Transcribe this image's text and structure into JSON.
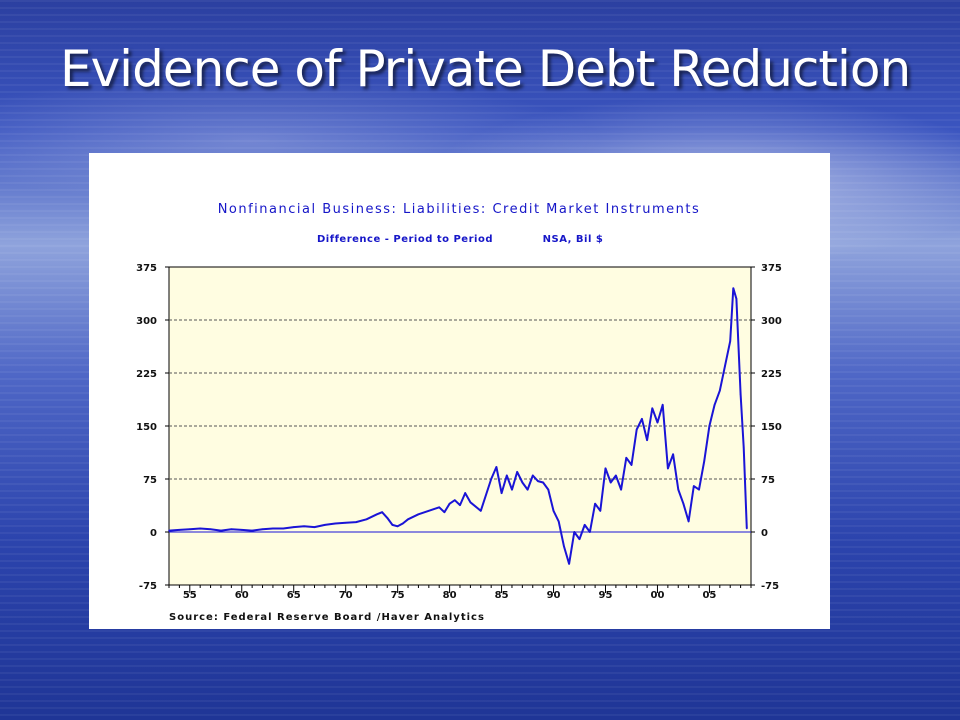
{
  "slide": {
    "title": "Evidence of Private Debt Reduction"
  },
  "chart_data": {
    "type": "line",
    "title": "Nonfinancial Business: Liabilities: Credit Market Instruments",
    "subtitle": "Difference - Period to Period",
    "units_note": "NSA, Bil $",
    "source": "Source:  Federal Reserve Board /Haver Analytics",
    "xlim": [
      1953,
      2009
    ],
    "ylim": [
      -75,
      375
    ],
    "x_ticks": [
      1955,
      1960,
      1965,
      1970,
      1975,
      1980,
      1985,
      1990,
      1995,
      2000,
      2005
    ],
    "x_tick_labels": [
      "55",
      "60",
      "65",
      "70",
      "75",
      "80",
      "85",
      "90",
      "95",
      "00",
      "05"
    ],
    "y_ticks": [
      -75,
      0,
      75,
      150,
      225,
      300,
      375
    ],
    "y_tick_labels": [
      "-75",
      "0",
      "75",
      "150",
      "225",
      "300",
      "375"
    ],
    "y_axis_both_sides": true,
    "grid": "horizontal dashed",
    "plot_background": "#fffde1",
    "line_color": "#1a14d6",
    "series": [
      {
        "x": [
          1953.0,
          1954.0,
          1955.0,
          1956.0,
          1957.0,
          1958.0,
          1959.0,
          1960.0,
          1961.0,
          1962.0,
          1963.0,
          1964.0,
          1965.0,
          1966.0,
          1967.0,
          1968.0,
          1969.0,
          1970.0,
          1971.0,
          1972.0,
          1973.0,
          1973.5,
          1974.0,
          1974.5,
          1975.0,
          1975.5,
          1976.0,
          1977.0,
          1978.0,
          1979.0,
          1979.5,
          1980.0,
          1980.5,
          1981.0,
          1981.5,
          1982.0,
          1983.0,
          1984.0,
          1984.5,
          1985.0,
          1985.5,
          1986.0,
          1986.5,
          1987.0,
          1987.5,
          1988.0,
          1988.5,
          1989.0,
          1989.5,
          1990.0,
          1990.5,
          1991.0,
          1991.5,
          1992.0,
          1992.5,
          1993.0,
          1993.5,
          1994.0,
          1994.5,
          1995.0,
          1995.5,
          1996.0,
          1996.5,
          1997.0,
          1997.5,
          1998.0,
          1998.5,
          1999.0,
          1999.5,
          2000.0,
          2000.5,
          2001.0,
          2001.5,
          2002.0,
          2002.5,
          2003.0,
          2003.5,
          2004.0,
          2004.5,
          2005.0,
          2005.5,
          2006.0,
          2006.5,
          2007.0,
          2007.3,
          2007.6,
          2008.0,
          2008.3,
          2008.6
        ],
        "values": [
          2,
          3,
          4,
          5,
          4,
          2,
          4,
          3,
          2,
          4,
          5,
          5,
          7,
          8,
          7,
          10,
          12,
          13,
          14,
          18,
          25,
          28,
          20,
          10,
          8,
          12,
          18,
          25,
          30,
          35,
          28,
          40,
          45,
          38,
          55,
          42,
          30,
          75,
          92,
          55,
          80,
          60,
          85,
          70,
          60,
          80,
          72,
          70,
          60,
          30,
          15,
          -20,
          -45,
          0,
          -10,
          10,
          0,
          40,
          30,
          90,
          70,
          80,
          60,
          105,
          95,
          145,
          160,
          130,
          175,
          155,
          180,
          90,
          110,
          60,
          40,
          15,
          65,
          60,
          100,
          150,
          180,
          200,
          235,
          270,
          345,
          330,
          195,
          120,
          5
        ]
      }
    ]
  }
}
